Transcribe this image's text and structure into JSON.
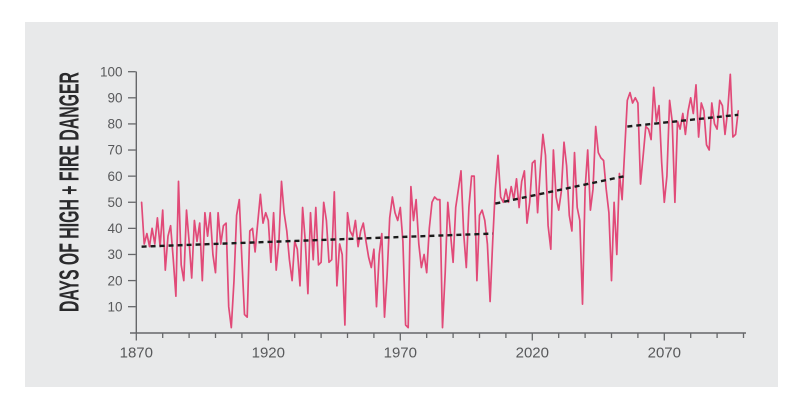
{
  "figure": {
    "background": "#ffffff",
    "panel_background": "#e8e9ea"
  },
  "chart_data": {
    "type": "line",
    "title": "",
    "xlabel": "",
    "ylabel": "DAYS OF HIGH + FIRE DANGER",
    "xlim": [
      1870,
      2100
    ],
    "ylim": [
      0,
      100
    ],
    "grid": false,
    "legend": "none",
    "y_ticks": [
      10,
      20,
      30,
      40,
      50,
      60,
      70,
      80,
      90,
      100
    ],
    "x_tick_step": 10,
    "x_major_ticks": [
      1870,
      1920,
      1970,
      2020,
      2070
    ],
    "axis_color": "#66676a",
    "tick_label_color": "#58595b",
    "ylabel_color": "#2a2a2c",
    "series": [
      {
        "name": "annual-days-of-high-fire-danger",
        "color": "#e14a78",
        "start_year": 1872,
        "end_year": 2098,
        "values": [
          50,
          34,
          38,
          33,
          40,
          34,
          44,
          33,
          47,
          24,
          37,
          41,
          28,
          14,
          58,
          26,
          20,
          47,
          35,
          21,
          43,
          35,
          42,
          20,
          46,
          37,
          46,
          30,
          23,
          46,
          34,
          41,
          42,
          10,
          2,
          20,
          45,
          51,
          28,
          7,
          6,
          39,
          40,
          31,
          42,
          53,
          42,
          46,
          43,
          27,
          46,
          24,
          35,
          58,
          46,
          39,
          28,
          20,
          35,
          32,
          18,
          48,
          35,
          15,
          46,
          28,
          48,
          26,
          27,
          50,
          43,
          27,
          28,
          54,
          18,
          34,
          30,
          3,
          46,
          39,
          37,
          43,
          33,
          39,
          42,
          35,
          29,
          25,
          32,
          10,
          30,
          38,
          6,
          22,
          44,
          52,
          46,
          43,
          48,
          35,
          3,
          2,
          56,
          43,
          51,
          34,
          25,
          30,
          23,
          40,
          50,
          52,
          51,
          51,
          2,
          23,
          50,
          38,
          27,
          48,
          55,
          62,
          38,
          25,
          48,
          60,
          60,
          20,
          45,
          47,
          43,
          34,
          12,
          35,
          55,
          68,
          52,
          50,
          55,
          50,
          56,
          51,
          59,
          48,
          58,
          62,
          42,
          50,
          65,
          66,
          46,
          62,
          76,
          68,
          41,
          32,
          70,
          52,
          47,
          54,
          73,
          64,
          45,
          39,
          69,
          48,
          43,
          11,
          55,
          70,
          47,
          55,
          79,
          69,
          67,
          66,
          55,
          46,
          20,
          50,
          30,
          61,
          51,
          70,
          89,
          92,
          88,
          90,
          88,
          57,
          68,
          79,
          78,
          74,
          94,
          81,
          87,
          65,
          50,
          60,
          89,
          81,
          50,
          81,
          78,
          84,
          76,
          85,
          90,
          84,
          95,
          75,
          88,
          85,
          72,
          70,
          88,
          80,
          78,
          89,
          87,
          76,
          85,
          99,
          75,
          76,
          85
        ]
      }
    ],
    "trend": {
      "name": "trend-dashed",
      "color": "#1b1b1b",
      "style": "dashed",
      "segments": [
        {
          "x0": 1872,
          "y0": 33,
          "x1": 2005,
          "y1": 38
        },
        {
          "x0": 2006,
          "y0": 49.5,
          "x1": 2055,
          "y1": 60
        },
        {
          "x0": 2056,
          "y0": 79,
          "x1": 2098,
          "y1": 83.5
        }
      ]
    }
  }
}
